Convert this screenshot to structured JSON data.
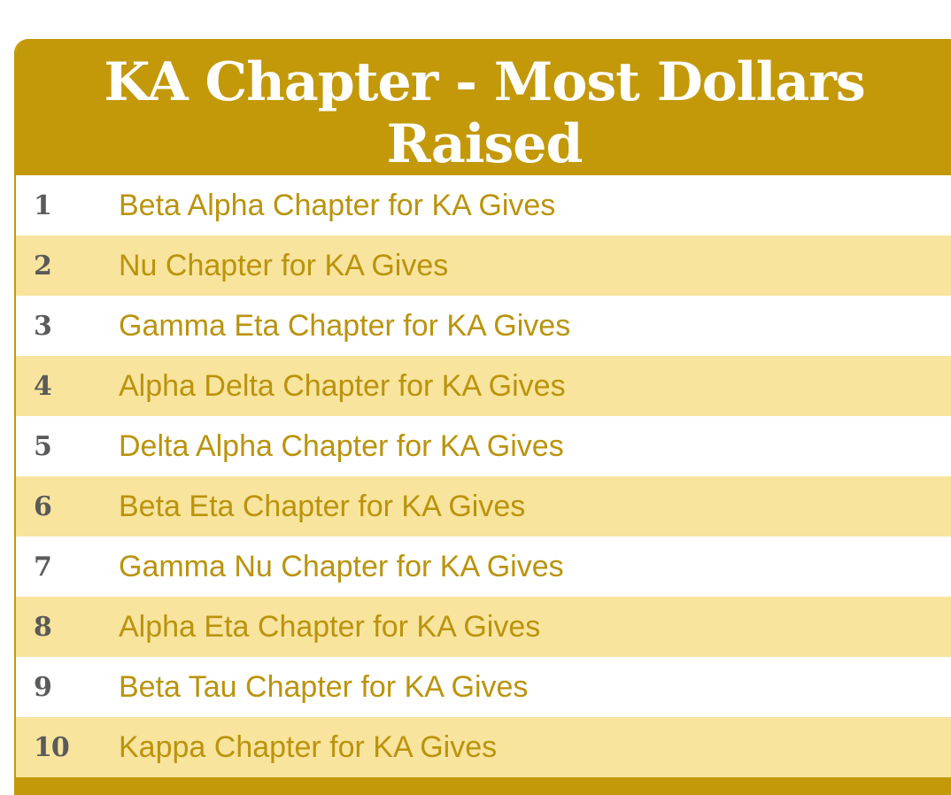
{
  "leaderboard": {
    "title": "KA Chapter - Most Dollars Raised",
    "colors": {
      "header": "#c3990a",
      "stripe": "#f8e49d",
      "link": "#bb930c",
      "rank": "#5a5a5a"
    },
    "rows": [
      {
        "rank": "1",
        "name": "Beta Alpha Chapter for KA Gives"
      },
      {
        "rank": "2",
        "name": "Nu Chapter for KA Gives"
      },
      {
        "rank": "3",
        "name": "Gamma Eta Chapter for KA Gives"
      },
      {
        "rank": "4",
        "name": "Alpha Delta Chapter for KA Gives"
      },
      {
        "rank": "5",
        "name": "Delta Alpha Chapter for KA Gives"
      },
      {
        "rank": "6",
        "name": "Beta Eta Chapter for KA Gives"
      },
      {
        "rank": "7",
        "name": "Gamma Nu Chapter for KA Gives"
      },
      {
        "rank": "8",
        "name": "Alpha Eta Chapter for KA Gives"
      },
      {
        "rank": "9",
        "name": "Beta Tau Chapter for KA Gives"
      },
      {
        "rank": "10",
        "name": "Kappa Chapter for KA Gives"
      }
    ]
  }
}
